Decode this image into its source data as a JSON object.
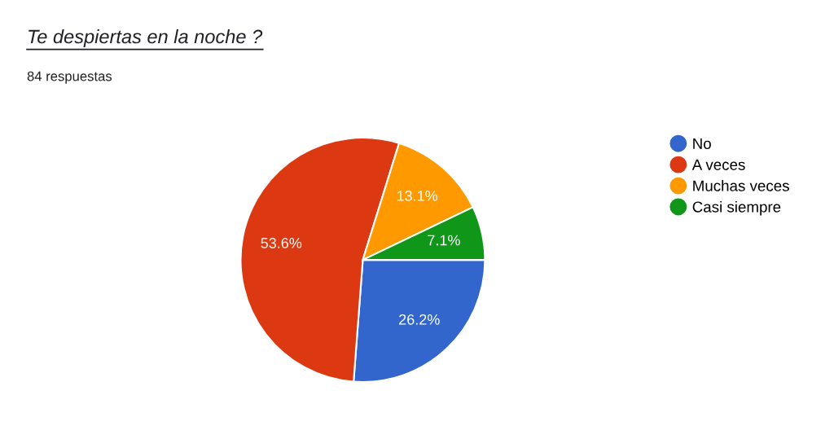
{
  "chart_data": {
    "type": "pie",
    "title": "Te despiertas en la noche ?",
    "subtitle": "84 respuestas",
    "categories": [
      "No",
      "A veces",
      "Muchas veces",
      "Casi siempre"
    ],
    "values": [
      26.2,
      53.6,
      13.1,
      7.1
    ],
    "colors": [
      "#3366cc",
      "#dc3912",
      "#ff9900",
      "#109618"
    ],
    "value_labels": [
      "26.2%",
      "53.6%",
      "13.1%",
      "7.1%"
    ],
    "legend": "right"
  }
}
